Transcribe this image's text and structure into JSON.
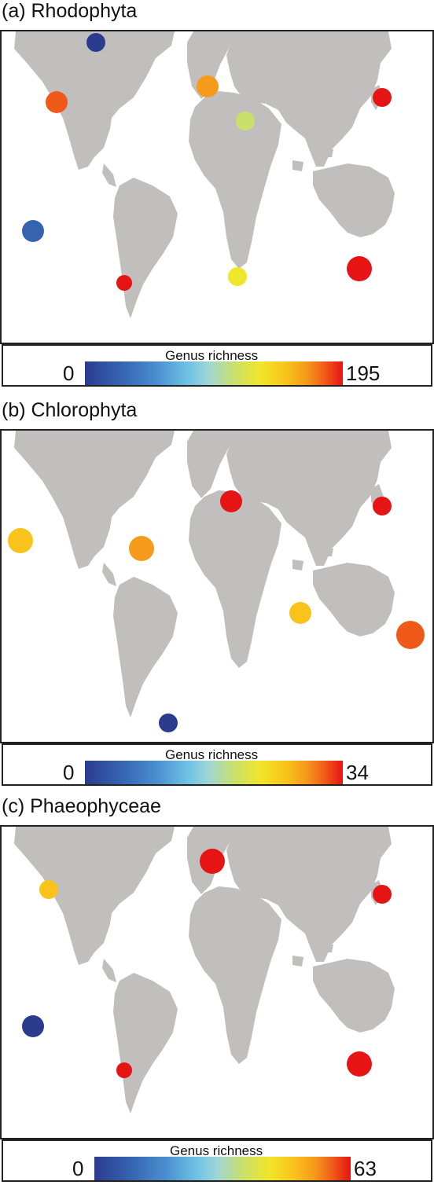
{
  "panels": [
    {
      "title": "(a) Rhodophyta",
      "legend_label": "Genus richness",
      "min": "0",
      "max": "195"
    },
    {
      "title": "(b) Chlorophyta",
      "legend_label": "Genus richness",
      "min": "0",
      "max": "34"
    },
    {
      "title": "(c) Phaeophyceae",
      "legend_label": "Genus richness",
      "min": "0",
      "max": "63"
    }
  ],
  "colors": {
    "land": "#c1bfbe",
    "scale": [
      "#2b3c8f",
      "#3663b0",
      "#4a8fd0",
      "#6fc2e6",
      "#9fd6d6",
      "#c9e06a",
      "#f0e62a",
      "#f9c31b",
      "#f59a1a",
      "#ef5a18",
      "#e61414"
    ]
  },
  "hotspots": [
    [
      {
        "region": "NW America coast",
        "level": 0.8
      },
      {
        "region": "Arctic Canada",
        "level": 0.05
      },
      {
        "region": "NE Atlantic Europe",
        "level": 0.85
      },
      {
        "region": "Mediterranean",
        "level": 0.55
      },
      {
        "region": "Japan",
        "level": 0.97
      },
      {
        "region": "South Australia",
        "level": 0.97
      },
      {
        "region": "South Chile",
        "level": 0.97
      },
      {
        "region": "South Africa",
        "level": 0.6
      },
      {
        "region": "Central Pacific islands",
        "level": 0.05
      }
    ],
    [
      {
        "region": "Mediterranean",
        "level": 0.95
      },
      {
        "region": "Japan",
        "level": 0.97
      },
      {
        "region": "Caribbean",
        "level": 0.85
      },
      {
        "region": "East Australia",
        "level": 0.9
      },
      {
        "region": "Hawaii",
        "level": 0.65
      },
      {
        "region": "Indian Ocean",
        "level": 0.7
      },
      {
        "region": "Southern Ocean",
        "level": 0.05
      }
    ],
    [
      {
        "region": "NE Atlantic Europe",
        "level": 0.97
      },
      {
        "region": "Japan",
        "level": 0.97
      },
      {
        "region": "South Australia",
        "level": 0.97
      },
      {
        "region": "South Chile",
        "level": 0.97
      },
      {
        "region": "NW America coast",
        "level": 0.65
      },
      {
        "region": "Central Pacific islands",
        "level": 0.05
      }
    ]
  ]
}
